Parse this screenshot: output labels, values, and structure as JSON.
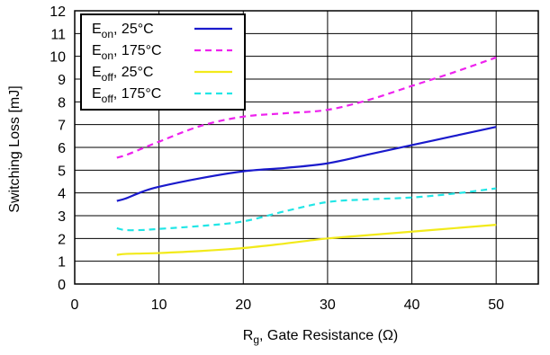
{
  "chart_data": {
    "type": "line",
    "xlabel": {
      "main": "R",
      "sub": "g",
      "rest": ", Gate Resistance (Ω)"
    },
    "ylabel": "Switching Loss [mJ]",
    "xlim": [
      0,
      55
    ],
    "ylim": [
      0,
      12
    ],
    "xticks": [
      "0",
      "10",
      "20",
      "30",
      "40",
      "50"
    ],
    "xtick_values": [
      0,
      10,
      20,
      30,
      40,
      50
    ],
    "yticks": [
      "0",
      "1",
      "2",
      "3",
      "4",
      "5",
      "6",
      "7",
      "8",
      "9",
      "10",
      "11",
      "12"
    ],
    "ytick_values": [
      0,
      1,
      2,
      3,
      4,
      5,
      6,
      7,
      8,
      9,
      10,
      11,
      12
    ],
    "grid": true,
    "legend_position": "top-left",
    "series": [
      {
        "name": "Eon, 25°C",
        "label_main": "E",
        "label_sub": "on",
        "label_rest": ", 25°C",
        "color": "#1a1acc",
        "dash": "solid",
        "x": [
          5,
          6,
          8,
          10,
          15,
          20,
          25,
          30,
          35,
          40,
          45,
          50
        ],
        "y": [
          3.65,
          3.75,
          4.05,
          4.27,
          4.65,
          4.95,
          5.1,
          5.3,
          5.7,
          6.1,
          6.5,
          6.9
        ]
      },
      {
        "name": "Eon, 175°C",
        "label_main": "E",
        "label_sub": "on",
        "label_rest": ", 175°C",
        "color": "#ee22ee",
        "dash": "dashed",
        "x": [
          5,
          6,
          8,
          10,
          15,
          20,
          25,
          30,
          35,
          40,
          45,
          50
        ],
        "y": [
          5.55,
          5.65,
          5.95,
          6.25,
          6.95,
          7.35,
          7.5,
          7.65,
          8.1,
          8.7,
          9.3,
          9.95
        ]
      },
      {
        "name": "Eoff, 25°C",
        "label_main": "E",
        "label_sub": "off",
        "label_rest": ", 25°C",
        "color": "#f2ea1a",
        "dash": "solid",
        "x": [
          5,
          6,
          8,
          10,
          15,
          20,
          25,
          30,
          35,
          40,
          45,
          50
        ],
        "y": [
          1.28,
          1.32,
          1.34,
          1.36,
          1.45,
          1.58,
          1.78,
          2.0,
          2.15,
          2.3,
          2.45,
          2.6
        ]
      },
      {
        "name": "Eoff, 175°C",
        "label_main": "E",
        "label_sub": "off",
        "label_rest": ", 175°C",
        "color": "#22e6e6",
        "dash": "dashed",
        "x": [
          5,
          6,
          8,
          10,
          15,
          20,
          25,
          30,
          35,
          40,
          45,
          50
        ],
        "y": [
          2.45,
          2.37,
          2.37,
          2.42,
          2.55,
          2.75,
          3.2,
          3.6,
          3.72,
          3.8,
          3.97,
          4.2
        ]
      }
    ]
  }
}
